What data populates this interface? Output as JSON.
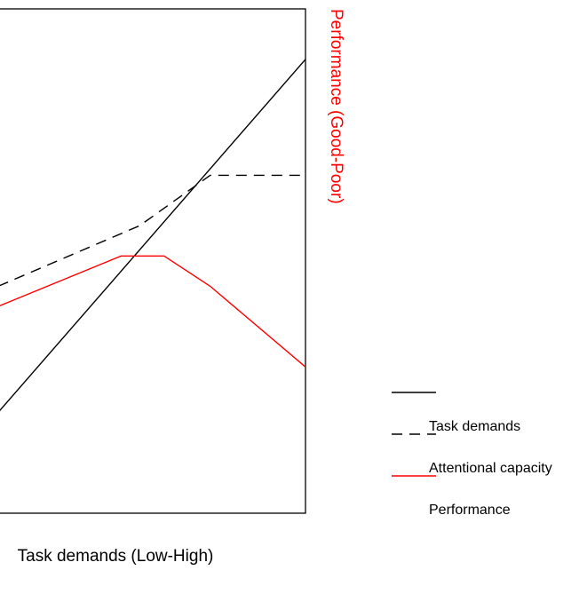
{
  "chart_data": {
    "type": "line",
    "xlabel": "Task demands (Low-High)",
    "ylabel_right": "Performance (Good-Poor)",
    "ylabel_right_color": "#ff0000",
    "xlim": [
      0,
      100
    ],
    "ylim": [
      0,
      100
    ],
    "grid": false,
    "legend_position": "bottom-right",
    "series": [
      {
        "name": "Task demands",
        "color": "#000000",
        "dash": "solid",
        "x": [
          0,
          100
        ],
        "y": [
          20,
          90
        ]
      },
      {
        "name": "Attentional capacity",
        "color": "#000000",
        "dash": "dashed",
        "x": [
          0,
          46,
          69,
          100
        ],
        "y": [
          45,
          57,
          67,
          67
        ]
      },
      {
        "name": "Performance",
        "color": "#ff0000",
        "dash": "solid",
        "x": [
          0,
          40,
          54,
          69,
          100
        ],
        "y": [
          41,
          51,
          51,
          45,
          29
        ]
      }
    ]
  }
}
